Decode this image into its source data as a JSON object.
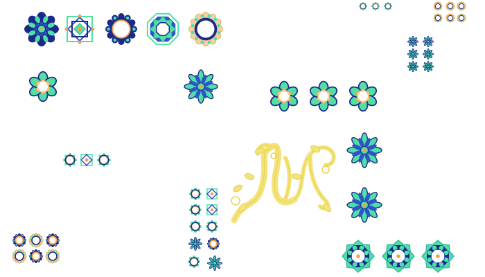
{
  "colors": {
    "navy": "#1b2a8a",
    "blue": "#2e54c8",
    "mint": "#4fe0a8",
    "teal": "#3fb8a0",
    "orange": "#f2a24a",
    "peach": "#f6cfa0",
    "yellow": "#f2e37a",
    "yellow_dark": "#e8d24e",
    "white": "#ffffff"
  },
  "ornaments": [
    {
      "name": "ornament-navy-star-rosette",
      "style": "star-rosette"
    },
    {
      "name": "ornament-square-knot",
      "style": "square-knot"
    },
    {
      "name": "ornament-navy-ring",
      "style": "navy-ring"
    },
    {
      "name": "ornament-octagon-star",
      "style": "octagon-star"
    },
    {
      "name": "ornament-peach-ring",
      "style": "peach-ring"
    },
    {
      "name": "ornament-hex-flower",
      "style": "hex-flower"
    },
    {
      "name": "ornament-star-flower",
      "style": "star-flower"
    },
    {
      "name": "ornament-hex-flower",
      "style": "hex-flower"
    },
    {
      "name": "ornament-hex-flower",
      "style": "hex-flower"
    },
    {
      "name": "ornament-hex-flower",
      "style": "hex-flower"
    },
    {
      "name": "ornament-star-flower",
      "style": "star-flower"
    },
    {
      "name": "ornament-star-flower",
      "style": "star-flower"
    },
    {
      "name": "ornament-small-ring",
      "style": "small-ring"
    },
    {
      "name": "ornament-small-knot",
      "style": "small-knot"
    },
    {
      "name": "ornament-small-ring",
      "style": "small-ring"
    },
    {
      "name": "ornament-ring-cluster",
      "style": "small-ring"
    },
    {
      "name": "ornament-ring-cluster",
      "style": "small-ring"
    },
    {
      "name": "ornament-ring-cluster",
      "style": "small-ring"
    },
    {
      "name": "ornament-star-cluster",
      "style": "small-star"
    },
    {
      "name": "ornament-star-cluster",
      "style": "small-star"
    },
    {
      "name": "ornament-star-cluster",
      "style": "small-star"
    },
    {
      "name": "ornament-star-cluster",
      "style": "small-star"
    },
    {
      "name": "ornament-star-cluster",
      "style": "small-star"
    },
    {
      "name": "ornament-star-cluster",
      "style": "small-star"
    },
    {
      "name": "ornament-column",
      "style": "small-ring"
    },
    {
      "name": "ornament-column",
      "style": "small-knot"
    },
    {
      "name": "ornament-column",
      "style": "small-ring"
    },
    {
      "name": "ornament-column",
      "style": "small-knot"
    },
    {
      "name": "ornament-column",
      "style": "small-ring"
    },
    {
      "name": "ornament-column",
      "style": "small-ring"
    },
    {
      "name": "ornament-column",
      "style": "small-star"
    },
    {
      "name": "ornament-column",
      "style": "navy-ring"
    },
    {
      "name": "ornament-column",
      "style": "small-ring"
    },
    {
      "name": "ornament-column",
      "style": "small-star"
    },
    {
      "name": "ornament-grid",
      "style": "navy-ring"
    },
    {
      "name": "ornament-grid",
      "style": "peach-ring"
    },
    {
      "name": "ornament-grid",
      "style": "navy-ring"
    },
    {
      "name": "ornament-grid",
      "style": "peach-ring"
    },
    {
      "name": "ornament-grid",
      "style": "navy-ring"
    },
    {
      "name": "ornament-grid",
      "style": "peach-ring"
    },
    {
      "name": "ornament-teal-octagon",
      "style": "teal-octagon"
    },
    {
      "name": "ornament-teal-octagon",
      "style": "teal-octagon"
    },
    {
      "name": "ornament-teal-octagon",
      "style": "teal-octagon"
    }
  ],
  "vine": {
    "name": "yellow-vine-ornament"
  }
}
